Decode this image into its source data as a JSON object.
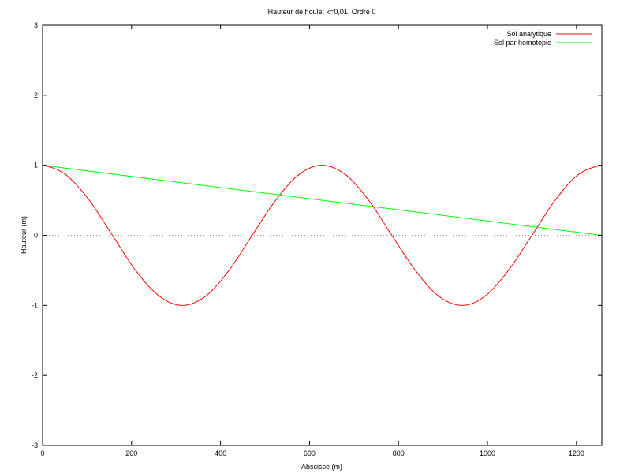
{
  "chart_data": {
    "type": "line",
    "title": "Hauteur de houle; k=0,01, Ordre 0",
    "xlabel": "Abscisse (m)",
    "ylabel": "Hauteur (m)",
    "xlim": [
      0,
      1257
    ],
    "ylim": [
      -3,
      3
    ],
    "x_ticks": [
      {
        "value": 0,
        "label": "0"
      },
      {
        "value": 200,
        "label": "200"
      },
      {
        "value": 400,
        "label": "400"
      },
      {
        "value": 600,
        "label": "600"
      },
      {
        "value": 800,
        "label": "800"
      },
      {
        "value": 1000,
        "label": "1000"
      },
      {
        "value": 1200,
        "label": "1200"
      }
    ],
    "y_ticks": [
      {
        "value": 3,
        "label": "3"
      },
      {
        "value": 2,
        "label": "2"
      },
      {
        "value": 1,
        "label": "1"
      },
      {
        "value": 0,
        "label": "0"
      },
      {
        "value": -1,
        "label": "-1"
      },
      {
        "value": -2,
        "label": "-2"
      },
      {
        "value": -3,
        "label": "-3"
      }
    ],
    "grid": false,
    "zero_line": "dotted",
    "legend_position": "top-right",
    "series": [
      {
        "name": "Sol analytique",
        "color": "#ff0000",
        "x": [
          0,
          52,
          105,
          157,
          209,
          262,
          314,
          367,
          419,
          471,
          524,
          576,
          628,
          681,
          733,
          785,
          838,
          890,
          943,
          995,
          1047,
          1100,
          1152,
          1204,
          1257
        ],
        "y": [
          1.0,
          0.866,
          0.5,
          0.0,
          -0.5,
          -0.866,
          -1.0,
          -0.866,
          -0.5,
          0.0,
          0.5,
          0.866,
          1.0,
          0.866,
          0.5,
          0.0,
          -0.5,
          -0.866,
          -1.0,
          -0.866,
          -0.5,
          0.0,
          0.5,
          0.866,
          1.0
        ]
      },
      {
        "name": "Sol par homotopie",
        "color": "#00ff00",
        "x": [
          0,
          1257
        ],
        "y": [
          1.0,
          0.0
        ]
      }
    ]
  }
}
